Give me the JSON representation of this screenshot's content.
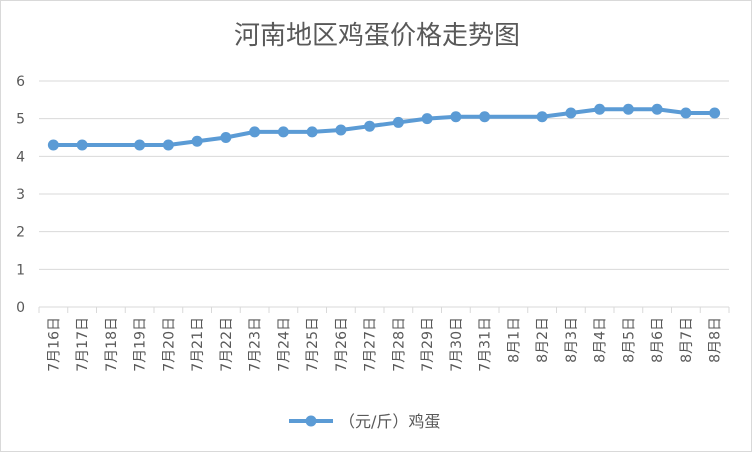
{
  "chart_data": {
    "type": "line",
    "title": "河南地区鸡蛋价格走势图",
    "xlabel": "",
    "ylabel": "",
    "ylim": [
      0,
      6
    ],
    "y_ticks": [
      0,
      1,
      2,
      3,
      4,
      5,
      6
    ],
    "grid": true,
    "legend_position": "bottom",
    "categories": [
      "7月16日",
      "7月17日",
      "7月18日",
      "7月19日",
      "7月20日",
      "7月21日",
      "7月22日",
      "7月23日",
      "7月24日",
      "7月25日",
      "7月26日",
      "7月27日",
      "7月28日",
      "7月29日",
      "7月30日",
      "7月31日",
      "8月1日",
      "8月2日",
      "8月3日",
      "8月4日",
      "8月5日",
      "8月6日",
      "8月7日",
      "8月8日"
    ],
    "series": [
      {
        "name": "（元/斤）鸡蛋",
        "color": "#5b9bd5",
        "values": [
          4.3,
          4.3,
          null,
          4.3,
          4.3,
          4.4,
          4.5,
          4.65,
          4.65,
          4.65,
          4.7,
          4.8,
          4.9,
          5.0,
          5.05,
          5.05,
          null,
          5.05,
          5.15,
          5.25,
          5.25,
          5.25,
          5.15,
          5.15
        ]
      }
    ]
  },
  "colors": {
    "series": "#5b9bd5",
    "grid": "#d9d9d9",
    "axis_text": "#595959",
    "title": "#595959"
  }
}
